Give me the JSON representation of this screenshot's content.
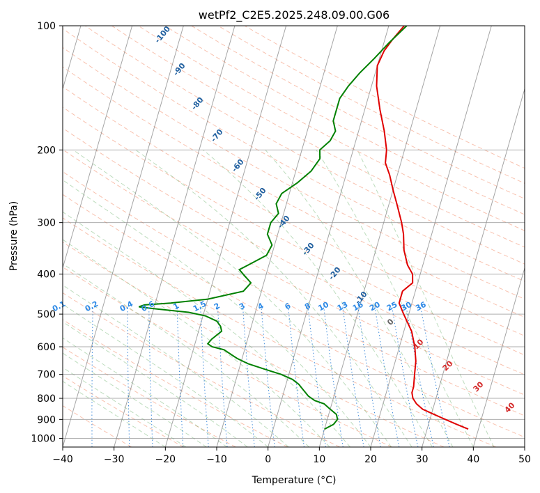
{
  "chart_data": {
    "type": "line",
    "title": "wetPf2_C2E5.2025.248.09.00.G06",
    "xlabel": "Temperature (°C)",
    "ylabel": "Pressure (hPa)",
    "xlim": [
      -40,
      50
    ],
    "ylim": [
      1050,
      100
    ],
    "y_scale": "log",
    "grid": true,
    "x_ticks": [
      "−40",
      "−30",
      "−20",
      "−10",
      "0",
      "10",
      "20",
      "30",
      "40",
      "50"
    ],
    "x_tick_values": [
      -40,
      -30,
      -20,
      -10,
      0,
      10,
      20,
      30,
      40,
      50
    ],
    "y_ticks": [
      "100",
      "200",
      "300",
      "400",
      "500",
      "600",
      "700",
      "800",
      "900",
      "1000"
    ],
    "y_tick_values": [
      100,
      200,
      300,
      400,
      500,
      600,
      700,
      800,
      900,
      1000
    ],
    "series": [
      {
        "color": "#e00000",
        "pressure": [
          950,
          925,
          900,
          875,
          850,
          825,
          800,
          775,
          750,
          700,
          650,
          600,
          550,
          500,
          470,
          440,
          420,
          400,
          380,
          350,
          320,
          300,
          270,
          250,
          230,
          215,
          200,
          180,
          160,
          140,
          125,
          115,
          108,
          100
        ],
        "temperature": [
          38.0,
          35.5,
          33.0,
          30.5,
          28.0,
          26.5,
          25.5,
          25.0,
          25.0,
          24.5,
          24.0,
          23.0,
          21.5,
          19.0,
          17.5,
          17.5,
          19.0,
          18.5,
          17.0,
          15.5,
          14.5,
          13.5,
          11.5,
          10.0,
          8.5,
          7.0,
          6.5,
          5.0,
          3.0,
          1.0,
          0.0,
          0.5,
          1.5,
          3.0
        ]
      },
      {
        "color": "#008000",
        "pressure": [
          950,
          925,
          900,
          875,
          850,
          825,
          810,
          790,
          760,
          740,
          720,
          700,
          680,
          660,
          640,
          625,
          610,
          600,
          590,
          575,
          550,
          535,
          520,
          505,
          495,
          485,
          480,
          475,
          470,
          460,
          440,
          420,
          400,
          390,
          380,
          360,
          340,
          320,
          300,
          285,
          270,
          255,
          240,
          225,
          210,
          200,
          190,
          180,
          170,
          160,
          150,
          140,
          130,
          120,
          110,
          100
        ],
        "temperature": [
          10.0,
          11.5,
          12.0,
          11.5,
          10.0,
          8.5,
          6.5,
          5.0,
          3.5,
          2.5,
          1.0,
          -1.5,
          -5.0,
          -8.5,
          -11.0,
          -12.5,
          -14.0,
          -16.5,
          -17.5,
          -17.0,
          -15.5,
          -16.0,
          -17.0,
          -19.5,
          -23.0,
          -30.0,
          -33.0,
          -32.0,
          -27.0,
          -20.0,
          -13.5,
          -12.5,
          -14.5,
          -15.5,
          -14.0,
          -11.0,
          -10.5,
          -12.0,
          -12.0,
          -11.0,
          -12.0,
          -11.5,
          -9.0,
          -7.0,
          -6.0,
          -6.5,
          -5.0,
          -4.5,
          -5.5,
          -5.5,
          -5.5,
          -4.5,
          -3.0,
          -1.0,
          1.0,
          3.5
        ]
      }
    ],
    "dry_adiabat_labels": [
      "-100",
      "-90",
      "-80",
      "-70",
      "-60",
      "-50",
      "-40",
      "-30",
      "-20",
      "-10"
    ],
    "mixing_ratio_labels": [
      "0.1",
      "0.2",
      "0.4",
      "0.6",
      "1",
      "1.5",
      "2",
      "3",
      "4",
      "6",
      "8",
      "10",
      "13",
      "16",
      "20",
      "25",
      "30",
      "36"
    ],
    "moist_adiabat_labels": [
      "0",
      "10",
      "20",
      "30",
      "40"
    ]
  }
}
